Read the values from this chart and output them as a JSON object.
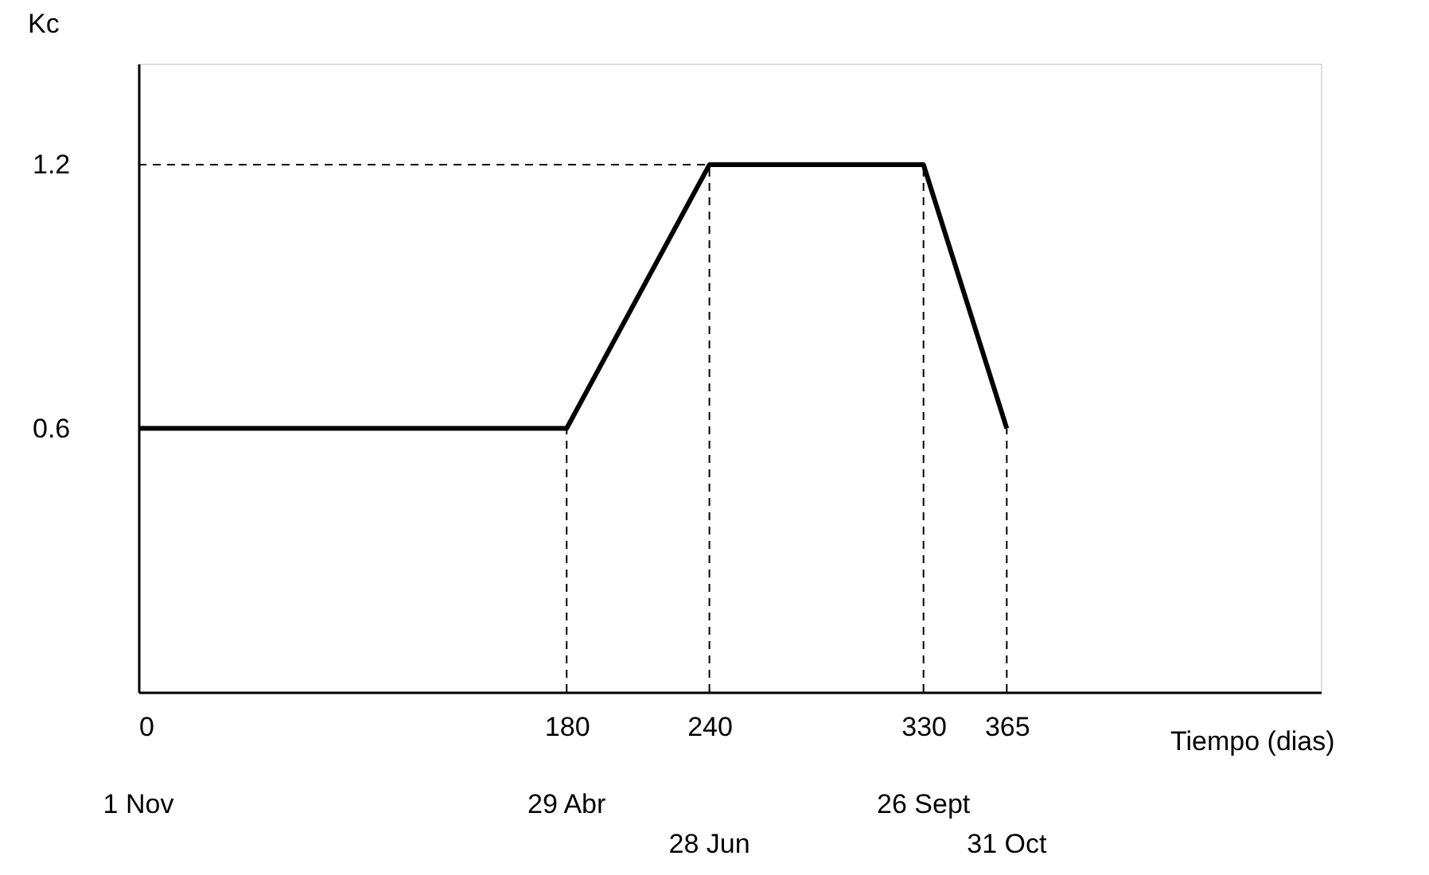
{
  "chart_data": {
    "type": "line",
    "xlabel": "Tiempo (dias)",
    "ylabel": "Kc",
    "x": [
      0,
      180,
      240,
      330,
      365
    ],
    "series": [
      {
        "color": "#000000",
        "values": [
          0.6,
          0.6,
          1.2,
          1.2,
          0.6
        ]
      }
    ],
    "xlim": [
      0,
      497
    ],
    "ylim": [
      0,
      1.43
    ],
    "xticks": [
      0,
      180,
      240,
      330,
      365
    ],
    "yticks": [
      0.6,
      1.2
    ],
    "grid": false,
    "marker": "none",
    "line_style": "solid",
    "ref_lines": [
      {
        "axis": "x",
        "value": 180,
        "line_style": "dashed"
      },
      {
        "axis": "x",
        "value": 240,
        "line_style": "dashed"
      },
      {
        "axis": "x",
        "value": 330,
        "line_style": "dashed"
      },
      {
        "axis": "x",
        "value": 365,
        "line_style": "dashed"
      },
      {
        "axis": "y",
        "value": 1.2,
        "line_style": "dashed"
      }
    ],
    "annotations": [
      "1 Nov",
      "29 Abr",
      "28 Jun",
      "26 Sept",
      "31 Oct"
    ]
  }
}
